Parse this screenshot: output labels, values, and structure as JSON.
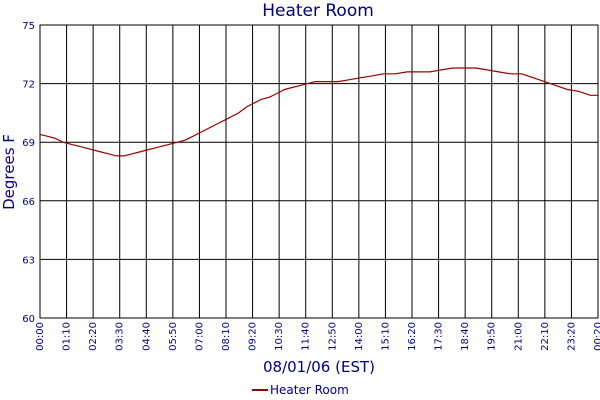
{
  "chart_data": {
    "type": "line",
    "title": "Heater Room",
    "xlabel": "08/01/06 (EST)",
    "ylabel": "Degrees F",
    "ylim": [
      60,
      75
    ],
    "yticks": [
      60,
      63,
      66,
      69,
      72,
      75
    ],
    "xlim": [
      "00:00",
      "00:20 (next day)"
    ],
    "xtick_labels": [
      "00:00",
      "01:10",
      "02:20",
      "03:30",
      "04:40",
      "05:50",
      "07:00",
      "08:10",
      "09:20",
      "10:30",
      "11:40",
      "12:50",
      "14:00",
      "15:10",
      "16:20",
      "17:30",
      "18:40",
      "19:50",
      "21:00",
      "22:10",
      "23:20",
      "00:20"
    ],
    "grid": true,
    "legend": "bottom-center",
    "colors": {
      "series": "#990000",
      "axis_text": "#000080",
      "grid": "#000000"
    },
    "series": [
      {
        "name": "Heater Room",
        "x": [
          "00:00",
          "00:20",
          "00:40",
          "01:00",
          "01:20",
          "01:40",
          "02:00",
          "02:20",
          "02:40",
          "03:00",
          "03:20",
          "03:40",
          "04:00",
          "04:20",
          "04:40",
          "05:00",
          "05:20",
          "05:40",
          "06:00",
          "06:20",
          "06:40",
          "07:00",
          "07:20",
          "07:40",
          "08:00",
          "08:20",
          "08:40",
          "09:00",
          "09:20",
          "09:40",
          "10:00",
          "10:20",
          "10:40",
          "11:00",
          "11:20",
          "11:40",
          "12:00",
          "12:20",
          "12:40",
          "13:00",
          "13:30",
          "14:00",
          "14:30",
          "15:00",
          "15:30",
          "16:00",
          "16:30",
          "17:00",
          "17:30",
          "18:00",
          "18:30",
          "19:00",
          "19:30",
          "20:00",
          "20:30",
          "21:00",
          "21:30",
          "22:00",
          "22:30",
          "23:00",
          "23:30",
          "00:00",
          "00:20"
        ],
        "y": [
          69.4,
          69.3,
          69.2,
          69.0,
          68.9,
          68.8,
          68.7,
          68.6,
          68.5,
          68.4,
          68.3,
          68.3,
          68.4,
          68.5,
          68.6,
          68.7,
          68.8,
          68.9,
          69.0,
          69.1,
          69.3,
          69.5,
          69.7,
          69.9,
          70.1,
          70.3,
          70.5,
          70.8,
          71.0,
          71.2,
          71.3,
          71.5,
          71.7,
          71.8,
          71.9,
          72.0,
          72.1,
          72.1,
          72.1,
          72.1,
          72.2,
          72.3,
          72.4,
          72.5,
          72.5,
          72.6,
          72.6,
          72.6,
          72.7,
          72.8,
          72.8,
          72.8,
          72.7,
          72.6,
          72.5,
          72.5,
          72.3,
          72.1,
          71.9,
          71.7,
          71.6,
          71.4,
          71.4
        ]
      }
    ]
  }
}
